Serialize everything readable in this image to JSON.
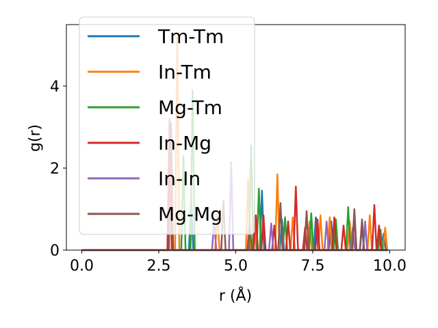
{
  "chart_data": {
    "type": "line",
    "title": "",
    "xlabel": "r (Å)",
    "ylabel": "g(r)",
    "xlim": [
      -0.5,
      10.5
    ],
    "ylim": [
      0,
      5.5
    ],
    "xticks": [
      "0.0",
      "2.5",
      "5.0",
      "7.5",
      "10.0"
    ],
    "xtick_values": [
      0,
      2.5,
      5.0,
      7.5,
      10.0
    ],
    "yticks": [
      "0",
      "2",
      "4"
    ],
    "ytick_values": [
      0,
      2,
      4
    ],
    "grid": false,
    "legend_position": "top-left",
    "series": [
      {
        "name": "Tm-Tm",
        "color": "#1f77b4",
        "peaks": [
          [
            3.55,
            1.3
          ],
          [
            5.85,
            1.45
          ],
          [
            6.5,
            0.75
          ],
          [
            7.6,
            0.8
          ],
          [
            8.1,
            0.7
          ],
          [
            9.1,
            0.55
          ],
          [
            9.8,
            0.4
          ]
        ]
      },
      {
        "name": "In-Tm",
        "color": "#ff7f0e",
        "peaks": [
          [
            3.1,
            5.2
          ],
          [
            4.4,
            0.9
          ],
          [
            5.4,
            1.75
          ],
          [
            5.6,
            0.8
          ],
          [
            6.35,
            1.85
          ],
          [
            6.85,
            0.8
          ],
          [
            7.4,
            0.7
          ],
          [
            7.75,
            0.85
          ],
          [
            8.05,
            0.8
          ],
          [
            8.7,
            0.7
          ],
          [
            9.35,
            0.85
          ],
          [
            9.85,
            0.55
          ]
        ]
      },
      {
        "name": "Mg-Tm",
        "color": "#2ca02c",
        "peaks": [
          [
            3.3,
            2.3
          ],
          [
            3.6,
            3.9
          ],
          [
            5.5,
            2.55
          ],
          [
            5.75,
            1.5
          ],
          [
            6.6,
            0.8
          ],
          [
            7.45,
            0.9
          ],
          [
            8.25,
            0.75
          ],
          [
            8.65,
            1.05
          ],
          [
            9.2,
            0.6
          ],
          [
            9.7,
            0.5
          ]
        ]
      },
      {
        "name": "In-Mg",
        "color": "#d62728",
        "peaks": [
          [
            2.85,
            3.2
          ],
          [
            5.65,
            0.85
          ],
          [
            5.9,
            0.85
          ],
          [
            6.25,
            0.6
          ],
          [
            6.7,
            0.7
          ],
          [
            6.95,
            1.55
          ],
          [
            7.25,
            0.55
          ],
          [
            7.65,
            0.75
          ],
          [
            8.2,
            0.8
          ],
          [
            8.5,
            0.6
          ],
          [
            8.85,
            0.8
          ],
          [
            9.5,
            1.1
          ],
          [
            9.65,
            0.6
          ]
        ]
      },
      {
        "name": "In-In",
        "color": "#9467bd",
        "peaks": [
          [
            4.3,
            0.7
          ],
          [
            4.85,
            2.15
          ],
          [
            6.15,
            0.65
          ],
          [
            7.95,
            0.7
          ],
          [
            8.8,
            0.55
          ],
          [
            9.2,
            0.7
          ]
        ]
      },
      {
        "name": "Mg-Mg",
        "color": "#8c564b",
        "peaks": [
          [
            2.9,
            3.1
          ],
          [
            4.6,
            1.2
          ],
          [
            5.45,
            0.7
          ],
          [
            6.45,
            1.15
          ],
          [
            7.3,
            0.95
          ],
          [
            8.85,
            1.0
          ],
          [
            9.1,
            0.75
          ]
        ]
      }
    ]
  }
}
